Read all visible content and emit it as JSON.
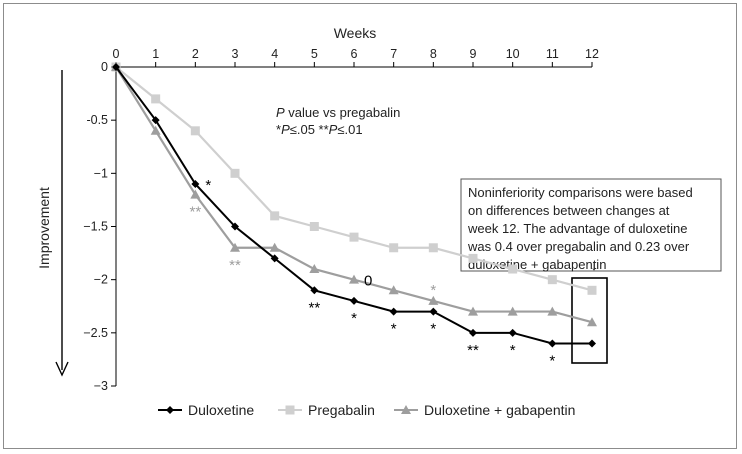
{
  "chart_data": {
    "type": "line",
    "xlabel": "Weeks",
    "ylabel": "Improvement",
    "x": [
      0,
      1,
      2,
      3,
      4,
      5,
      6,
      7,
      8,
      9,
      10,
      11,
      12
    ],
    "xlim": [
      0,
      12
    ],
    "ylim": [
      -3,
      0
    ],
    "yticks": [
      "0",
      "-0.5",
      "−1",
      "−1.5",
      "−2",
      "−2.5",
      "−3"
    ],
    "xticks": [
      "0",
      "1",
      "2",
      "3",
      "4",
      "5",
      "6",
      "7",
      "8",
      "9",
      "10",
      "11",
      "12"
    ],
    "legend_position": "bottom",
    "series": [
      {
        "name": "Duloxetine",
        "color": "#000000",
        "marker": "diamond",
        "values": [
          0,
          -0.5,
          -1.1,
          -1.5,
          -1.8,
          -2.1,
          -2.2,
          -2.3,
          -2.3,
          -2.5,
          -2.5,
          -2.6,
          -2.6
        ]
      },
      {
        "name": "Pregabalin",
        "color": "#cfcfcf",
        "marker": "square",
        "values": [
          0,
          -0.3,
          -0.6,
          -1.0,
          -1.4,
          -1.5,
          -1.6,
          -1.7,
          -1.7,
          -1.8,
          -1.9,
          -2.0,
          -2.1
        ]
      },
      {
        "name": "Duloxetine + gabapentin",
        "color": "#9e9e9e",
        "marker": "triangle",
        "values": [
          0,
          -0.6,
          -1.2,
          -1.7,
          -1.7,
          -1.9,
          -2.0,
          -2.1,
          -2.2,
          -2.3,
          -2.3,
          -2.3,
          -2.4
        ]
      }
    ],
    "significance_markers": [
      {
        "week": 2,
        "y": -1.1,
        "text": "*",
        "color": "#000000",
        "side": "right"
      },
      {
        "week": 2,
        "y": -1.2,
        "text": "**",
        "color": "#9e9e9e",
        "side": "below"
      },
      {
        "week": 3,
        "y": -1.7,
        "text": "**",
        "color": "#9e9e9e",
        "side": "below"
      },
      {
        "week": 5,
        "y": -2.1,
        "text": "**",
        "color": "#000000",
        "side": "below"
      },
      {
        "week": 6,
        "y": -2.2,
        "text": "*",
        "color": "#000000",
        "side": "below"
      },
      {
        "week": 6,
        "y": -2.0,
        "text": "0",
        "color": "#000000",
        "side": "right"
      },
      {
        "week": 7,
        "y": -2.3,
        "text": "*",
        "color": "#000000",
        "side": "below"
      },
      {
        "week": 8,
        "y": -2.2,
        "text": "*",
        "color": "#9e9e9e",
        "side": "above"
      },
      {
        "week": 8,
        "y": -2.3,
        "text": "*",
        "color": "#000000",
        "side": "below"
      },
      {
        "week": 9,
        "y": -2.5,
        "text": "**",
        "color": "#000000",
        "side": "below"
      },
      {
        "week": 10,
        "y": -2.5,
        "text": "*",
        "color": "#000000",
        "side": "below"
      },
      {
        "week": 11,
        "y": -2.6,
        "text": "*",
        "color": "#000000",
        "side": "below"
      }
    ],
    "pvalue_note": {
      "line1_italic": "P",
      "line1_rest": " value vs pregabalin",
      "line2_a": "*",
      "line2_p1": "P",
      "line2_b": "≤.05 **",
      "line2_p2": "P",
      "line2_c": "≤.01"
    },
    "callout_lines": [
      "Noninferiority comparisons were based",
      "on differences between changes at",
      "week 12. The advantage of duloxetine",
      "was 0.4 over pregabalin and 0.23 over",
      "duloxetine + gabapentin"
    ],
    "callout_arrow": "↓"
  }
}
